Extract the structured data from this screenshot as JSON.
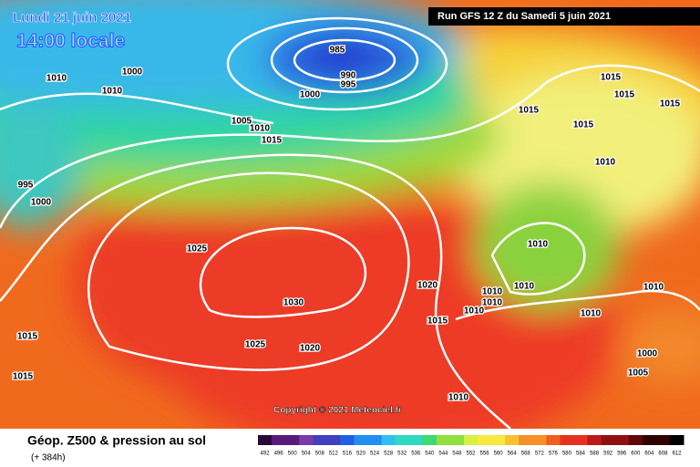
{
  "header": {
    "date": "Lundi 21 juin 2021",
    "time": "14:00 locale",
    "run": "Run GFS 12 Z du Samedi 5 juin 2021"
  },
  "isobar_labels": [
    985,
    990,
    995,
    1000,
    1000,
    1010,
    1010,
    1005,
    1010,
    1015,
    995,
    1000,
    1025,
    1030,
    1025,
    1020,
    1020,
    1015,
    1010,
    1010,
    1010,
    1010,
    1010,
    1010,
    1010,
    1015,
    1015,
    1015,
    1015,
    1015,
    1010,
    1015,
    1015,
    1000,
    1005,
    1010
  ],
  "copyright": "Copyright © 2021 Meteociel.fr",
  "footer": {
    "title": "Géop. Z500 & pression au sol",
    "lead": "(+ 384h)",
    "scale": [
      492,
      496,
      500,
      504,
      508,
      512,
      516,
      520,
      524,
      528,
      532,
      536,
      540,
      544,
      548,
      552,
      556,
      560,
      564,
      568,
      572,
      576,
      580,
      584,
      588,
      592,
      596,
      600,
      604,
      608,
      612
    ]
  }
}
